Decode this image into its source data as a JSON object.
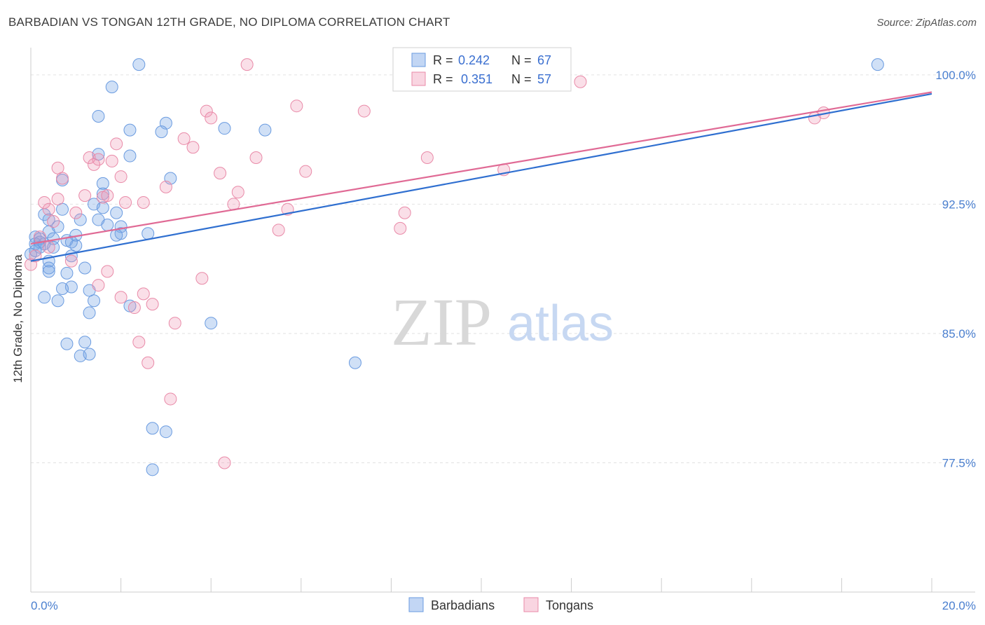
{
  "title": "BARBADIAN VS TONGAN 12TH GRADE, NO DIPLOMA CORRELATION CHART",
  "source": "Source: ZipAtlas.com",
  "watermark": {
    "zip": "ZIP",
    "atlas": "atlas"
  },
  "chart_data": {
    "type": "scatter",
    "ylabel": "12th Grade, No Diploma",
    "xlim": [
      0,
      20
    ],
    "ylim": [
      70.0,
      101.5
    ],
    "x_ticks": [
      "0.0%",
      "20.0%"
    ],
    "y_ticks": [
      {
        "value": 100.0,
        "label": "100.0%"
      },
      {
        "value": 92.5,
        "label": "92.5%"
      },
      {
        "value": 85.0,
        "label": "85.0%"
      },
      {
        "value": 77.5,
        "label": "77.5%"
      }
    ],
    "legend": [
      {
        "r_label": "R =",
        "r_value": "0.242",
        "n_label": "N =",
        "n_value": "67"
      },
      {
        "r_label": "R =",
        "r_value": "0.351",
        "n_label": "N =",
        "n_value": "57"
      }
    ],
    "series": [
      {
        "name": "Barbadians",
        "color": "#6a9be0",
        "fill": "rgba(120,165,230,0.35)",
        "line_color": "#2f6fd0",
        "trend": {
          "x0": 0,
          "y0": 89.2,
          "x1": 20,
          "y1": 98.9
        },
        "points": [
          [
            2.4,
            100.6
          ],
          [
            1.8,
            99.3
          ],
          [
            1.5,
            97.6
          ],
          [
            3.0,
            97.2
          ],
          [
            2.2,
            96.8
          ],
          [
            2.9,
            96.7
          ],
          [
            4.3,
            96.9
          ],
          [
            5.2,
            96.8
          ],
          [
            1.5,
            95.4
          ],
          [
            2.2,
            95.3
          ],
          [
            0.7,
            93.9
          ],
          [
            1.6,
            93.7
          ],
          [
            3.1,
            94.0
          ],
          [
            1.6,
            93.1
          ],
          [
            1.4,
            92.5
          ],
          [
            0.7,
            92.2
          ],
          [
            0.3,
            91.9
          ],
          [
            0.4,
            91.6
          ],
          [
            1.1,
            91.6
          ],
          [
            1.5,
            91.6
          ],
          [
            2.0,
            91.2
          ],
          [
            2.0,
            90.8
          ],
          [
            2.6,
            90.8
          ],
          [
            0.4,
            90.9
          ],
          [
            0.1,
            90.6
          ],
          [
            0.2,
            90.5
          ],
          [
            0.5,
            90.5
          ],
          [
            0.8,
            90.4
          ],
          [
            1.0,
            90.7
          ],
          [
            1.9,
            90.7
          ],
          [
            0.1,
            90.2
          ],
          [
            0.3,
            90.2
          ],
          [
            0.5,
            90.0
          ],
          [
            1.0,
            90.1
          ],
          [
            0.9,
            89.5
          ],
          [
            0.0,
            89.6
          ],
          [
            0.4,
            89.2
          ],
          [
            0.4,
            88.8
          ],
          [
            0.4,
            88.6
          ],
          [
            1.2,
            88.8
          ],
          [
            0.8,
            88.5
          ],
          [
            0.9,
            87.7
          ],
          [
            0.7,
            87.6
          ],
          [
            1.3,
            87.5
          ],
          [
            0.3,
            87.1
          ],
          [
            0.6,
            86.9
          ],
          [
            1.4,
            86.9
          ],
          [
            2.2,
            86.6
          ],
          [
            1.3,
            86.2
          ],
          [
            4.0,
            85.6
          ],
          [
            0.8,
            84.4
          ],
          [
            1.2,
            84.5
          ],
          [
            1.1,
            83.7
          ],
          [
            1.3,
            83.8
          ],
          [
            7.2,
            83.3
          ],
          [
            2.7,
            79.5
          ],
          [
            3.0,
            79.3
          ],
          [
            2.7,
            77.1
          ],
          [
            1.6,
            92.3
          ],
          [
            1.9,
            92.0
          ],
          [
            0.2,
            90.3
          ],
          [
            18.8,
            100.6
          ],
          [
            0.6,
            91.2
          ],
          [
            0.9,
            90.3
          ],
          [
            1.7,
            91.3
          ],
          [
            0.2,
            90.0
          ],
          [
            0.1,
            89.8
          ]
        ]
      },
      {
        "name": "Tongans",
        "color": "#e98aa8",
        "fill": "rgba(240,150,180,0.30)",
        "line_color": "#e06a95",
        "trend": {
          "x0": 0,
          "y0": 90.2,
          "x1": 20,
          "y1": 99.0
        },
        "points": [
          [
            4.8,
            100.6
          ],
          [
            12.2,
            99.6
          ],
          [
            5.9,
            98.2
          ],
          [
            7.4,
            97.9
          ],
          [
            3.9,
            97.9
          ],
          [
            4.0,
            97.5
          ],
          [
            17.6,
            97.8
          ],
          [
            17.4,
            97.5
          ],
          [
            1.9,
            96.0
          ],
          [
            3.4,
            96.3
          ],
          [
            3.6,
            95.8
          ],
          [
            1.3,
            95.2
          ],
          [
            1.5,
            95.1
          ],
          [
            1.8,
            95.0
          ],
          [
            1.4,
            94.8
          ],
          [
            5.0,
            95.2
          ],
          [
            8.8,
            95.2
          ],
          [
            0.6,
            94.6
          ],
          [
            6.1,
            94.4
          ],
          [
            4.2,
            94.3
          ],
          [
            10.5,
            94.5
          ],
          [
            2.0,
            94.1
          ],
          [
            0.7,
            94.0
          ],
          [
            3.0,
            93.5
          ],
          [
            4.6,
            93.2
          ],
          [
            1.2,
            93.0
          ],
          [
            1.6,
            92.9
          ],
          [
            0.6,
            92.8
          ],
          [
            0.3,
            92.6
          ],
          [
            2.1,
            92.6
          ],
          [
            2.5,
            92.6
          ],
          [
            4.5,
            92.5
          ],
          [
            5.7,
            92.2
          ],
          [
            8.3,
            92.0
          ],
          [
            0.4,
            92.2
          ],
          [
            1.0,
            92.0
          ],
          [
            5.5,
            91.0
          ],
          [
            8.2,
            91.1
          ],
          [
            0.2,
            90.6
          ],
          [
            0.4,
            90.0
          ],
          [
            0.9,
            89.2
          ],
          [
            1.7,
            88.6
          ],
          [
            3.8,
            88.2
          ],
          [
            1.5,
            87.8
          ],
          [
            2.5,
            87.3
          ],
          [
            2.0,
            87.1
          ],
          [
            2.7,
            86.7
          ],
          [
            2.3,
            86.5
          ],
          [
            3.2,
            85.6
          ],
          [
            2.4,
            84.5
          ],
          [
            2.6,
            83.3
          ],
          [
            3.1,
            81.2
          ],
          [
            4.3,
            77.5
          ],
          [
            0.0,
            89.0
          ],
          [
            0.1,
            89.5
          ],
          [
            0.5,
            91.5
          ],
          [
            1.7,
            93.0
          ]
        ]
      }
    ]
  }
}
